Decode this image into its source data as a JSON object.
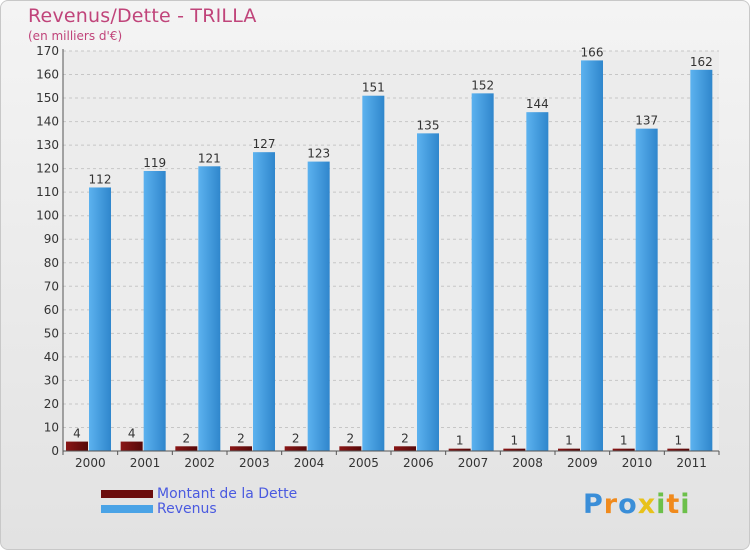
{
  "chart_data": {
    "type": "bar",
    "title": "Revenus/Dette - TRILLA",
    "subtitle": "(en milliers d'€)",
    "categories": [
      "2000",
      "2001",
      "2002",
      "2003",
      "2004",
      "2005",
      "2006",
      "2007",
      "2008",
      "2009",
      "2010",
      "2011"
    ],
    "series": [
      {
        "name": "Montant de la Dette",
        "color": "#6b0c0c",
        "values": [
          4,
          4,
          2,
          2,
          2,
          2,
          2,
          1,
          1,
          1,
          1,
          1
        ]
      },
      {
        "name": "Revenus",
        "color": "#4aa3e6",
        "values": [
          112,
          119,
          121,
          127,
          123,
          151,
          135,
          152,
          144,
          166,
          137,
          162
        ]
      }
    ],
    "ylim": [
      0,
      170
    ],
    "yticks": [
      0,
      10,
      20,
      30,
      40,
      50,
      60,
      70,
      80,
      90,
      100,
      110,
      120,
      130,
      140,
      150,
      160,
      170
    ],
    "grid": true,
    "legend_position": "bottom-left"
  },
  "logo": {
    "letters": [
      {
        "char": "P",
        "color": "#3a8ed8"
      },
      {
        "char": "r",
        "color": "#f08a1c"
      },
      {
        "char": "o",
        "color": "#3a8ed8"
      },
      {
        "char": "x",
        "color": "#e8c21a"
      },
      {
        "char": "i",
        "color": "#6cc04a"
      },
      {
        "char": "t",
        "color": "#f08a1c"
      },
      {
        "char": "i",
        "color": "#6cc04a"
      }
    ]
  }
}
